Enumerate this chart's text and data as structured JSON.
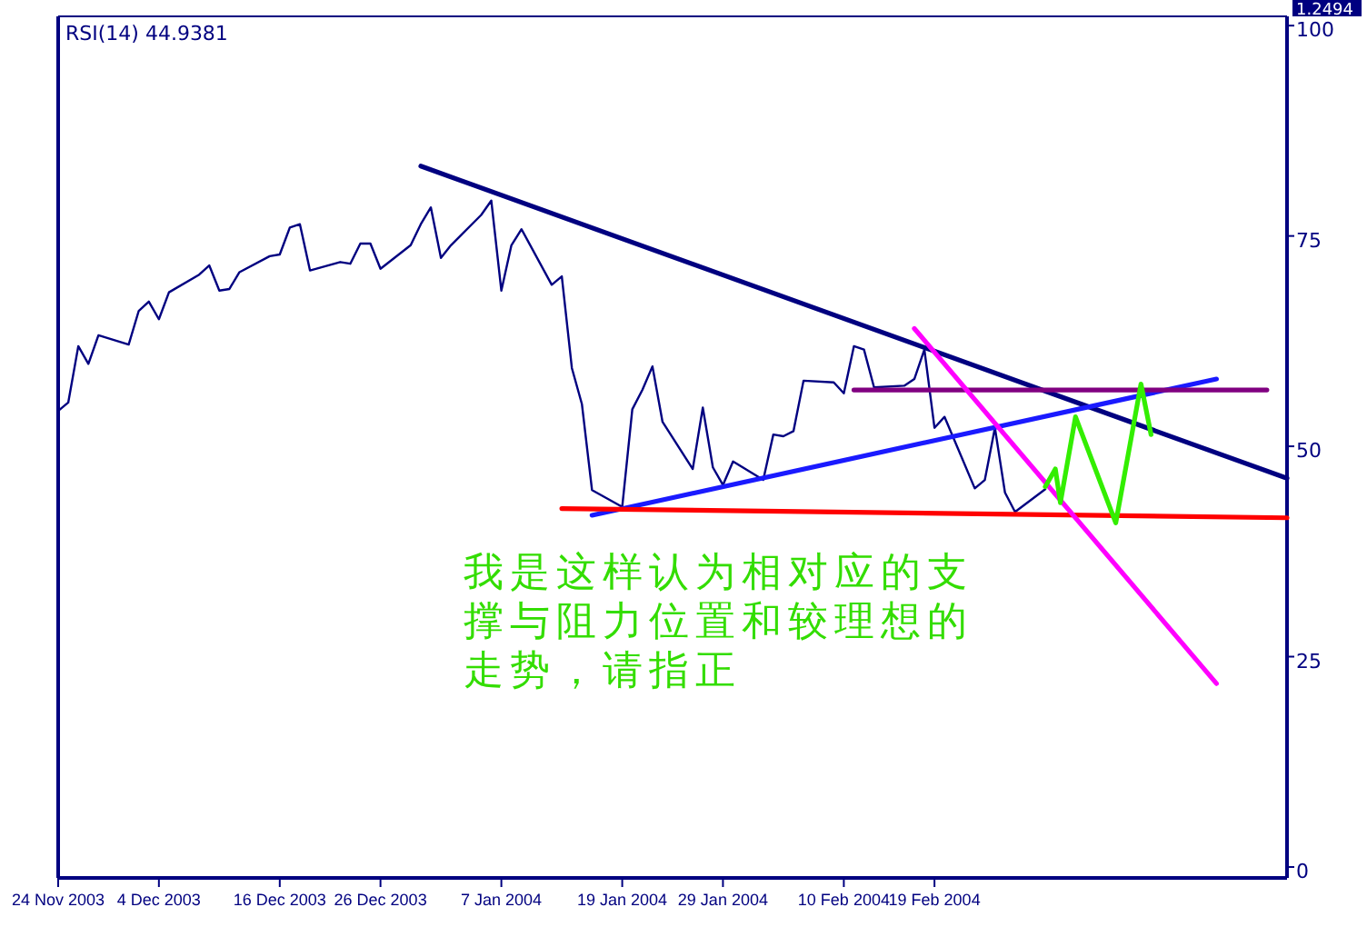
{
  "chart_data": {
    "type": "line",
    "title": "RSI(14) 44.9381",
    "xlim": [
      "2003-11-24",
      "2004-03-25"
    ],
    "xticks": [
      {
        "value": "2003-11-24",
        "label": "24 Nov 2003"
      },
      {
        "value": "2003-12-04",
        "label": "4 Dec 2003"
      },
      {
        "value": "2003-12-16",
        "label": "16 Dec 2003"
      },
      {
        "value": "2003-12-26",
        "label": "26 Dec 2003"
      },
      {
        "value": "2004-01-07",
        "label": "7 Jan 2004"
      },
      {
        "value": "2004-01-19",
        "label": "19 Jan 2004"
      },
      {
        "value": "2004-01-29",
        "label": "29 Jan 2004"
      },
      {
        "value": "2004-02-10",
        "label": "10 Feb 2004"
      },
      {
        "value": "2004-02-19",
        "label": "19 Feb 2004"
      }
    ],
    "ylim": [
      -1.3,
      101.1
    ],
    "yticks": [
      0,
      25,
      50,
      75,
      100
    ],
    "line_style": "solid",
    "series": [
      {
        "color": "#000080",
        "x": [
          "2003-11-24",
          "2003-11-25",
          "2003-11-26",
          "2003-11-27",
          "2003-11-28",
          "2003-12-01",
          "2003-12-02",
          "2003-12-03",
          "2003-12-04",
          "2003-12-05",
          "2003-12-08",
          "2003-12-09",
          "2003-12-10",
          "2003-12-11",
          "2003-12-12",
          "2003-12-15",
          "2003-12-16",
          "2003-12-17",
          "2003-12-18",
          "2003-12-19",
          "2003-12-22",
          "2003-12-23",
          "2003-12-24",
          "2003-12-25",
          "2003-12-26",
          "2003-12-29",
          "2003-12-30",
          "2003-12-31",
          "2004-01-01",
          "2004-01-02",
          "2004-01-05",
          "2004-01-06",
          "2004-01-07",
          "2004-01-08",
          "2004-01-09",
          "2004-01-12",
          "2004-01-13",
          "2004-01-14",
          "2004-01-15",
          "2004-01-16",
          "2004-01-19",
          "2004-01-20",
          "2004-01-21",
          "2004-01-22",
          "2004-01-23",
          "2004-01-26",
          "2004-01-27",
          "2004-01-28",
          "2004-01-29",
          "2004-01-30",
          "2004-02-02",
          "2004-02-03",
          "2004-02-04",
          "2004-02-05",
          "2004-02-06",
          "2004-02-09",
          "2004-02-10",
          "2004-02-11",
          "2004-02-12",
          "2004-02-13",
          "2004-02-16",
          "2004-02-17",
          "2004-02-18",
          "2004-02-19",
          "2004-02-20",
          "2004-02-23",
          "2004-02-24",
          "2004-02-25",
          "2004-02-26",
          "2004-02-27",
          "2004-03-01"
        ],
        "values": [
          54.2,
          55.2,
          61.9,
          59.8,
          63.2,
          62.1,
          66.1,
          67.2,
          65.1,
          68.3,
          70.4,
          71.5,
          68.5,
          68.7,
          70.7,
          72.6,
          72.8,
          76.0,
          76.4,
          70.9,
          71.9,
          71.7,
          74.1,
          74.1,
          71.1,
          73.9,
          76.4,
          78.4,
          72.4,
          73.9,
          77.5,
          79.2,
          68.5,
          73.9,
          75.8,
          69.2,
          70.2,
          59.3,
          55.0,
          44.8,
          42.8,
          54.4,
          56.7,
          59.5,
          52.9,
          47.3,
          54.6,
          47.5,
          45.4,
          48.2,
          46.0,
          51.4,
          51.2,
          51.8,
          57.8,
          57.6,
          56.3,
          61.9,
          61.5,
          57.0,
          57.2,
          58.0,
          61.5,
          52.2,
          53.5,
          45.0,
          46.0,
          52.2,
          44.5,
          42.2,
          44.9
        ]
      },
      {
        "color": "#000080",
        "x": [
          "2003-12-30",
          "2004-03-25"
        ],
        "values": [
          83.3,
          46.2
        ]
      },
      {
        "color": "#1a1aff",
        "x": [
          "2004-01-16",
          "2004-03-18"
        ],
        "values": [
          41.8,
          58.0
        ]
      },
      {
        "color": "#800080",
        "x": [
          "2004-02-11",
          "2004-03-23"
        ],
        "values": [
          56.7,
          56.7
        ]
      },
      {
        "color": "#ff0000",
        "x": [
          "2004-01-13",
          "2004-03-25"
        ],
        "values": [
          42.6,
          41.5
        ]
      },
      {
        "color": "#ff00ff",
        "x": [
          "2004-02-17",
          "2004-03-18"
        ],
        "values": [
          64.0,
          21.8
        ]
      },
      {
        "color": "#33ee00",
        "x": [
          "2004-03-01",
          "2004-03-02",
          "2004-03-02T12:00",
          "2004-03-04",
          "2004-03-08",
          "2004-03-10T12:00",
          "2004-03-11T12:00"
        ],
        "values": [
          45.2,
          47.3,
          43.3,
          53.5,
          40.9,
          57.4,
          51.4
        ]
      }
    ],
    "annotations": [
      "我是这样认为相对应的支撑与阻力位置和较理想的走势，请指正",
      "1.2494"
    ]
  }
}
